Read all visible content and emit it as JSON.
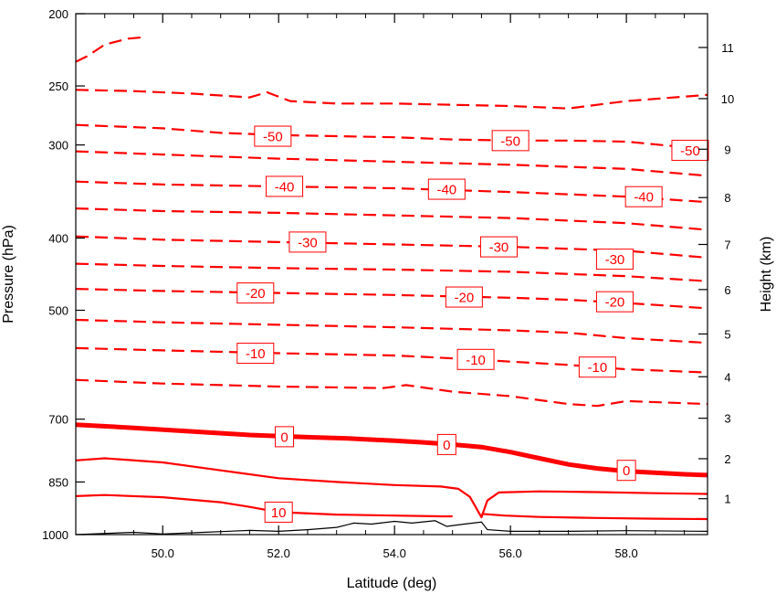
{
  "chart_data": {
    "type": "line",
    "title": "",
    "xlabel": "Latitude (deg)",
    "ylabel": "Pressure (hPa)",
    "ylabel_right": "Height (km)",
    "xlim": [
      48.5,
      59.4
    ],
    "ylim": [
      1000,
      200
    ],
    "y_scale": "log",
    "x_ticks": [
      50,
      52,
      54,
      56,
      58
    ],
    "x_tick_labels": [
      "50.0",
      "52.0",
      "54.0",
      "56.0",
      "58.0"
    ],
    "y_ticks": [
      200,
      250,
      300,
      400,
      500,
      700,
      850,
      1000
    ],
    "y_tick_labels": [
      "200",
      "250",
      "300",
      "400",
      "500",
      "700",
      "850",
      "1000"
    ],
    "y2_ticks": [
      1,
      2,
      3,
      4,
      5,
      6,
      7,
      8,
      9,
      10,
      11
    ],
    "y2_tick_labels": [
      "1",
      "2",
      "3",
      "4",
      "5",
      "6",
      "7",
      "8",
      "9",
      "10",
      "11"
    ],
    "y2_tick_pressure": [
      895,
      791,
      698,
      614,
      538,
      469,
      408,
      353,
      304,
      260,
      222
    ],
    "grid": false,
    "legend": "none",
    "line_color": "#ff0000",
    "terrain_color": "#000000",
    "series": [
      {
        "level": -60,
        "label": "",
        "style": "dashed",
        "x": [
          48.5,
          48.7,
          49.0,
          49.4,
          49.7
        ],
        "y": [
          232,
          228,
          220,
          216,
          215
        ]
      },
      {
        "level": -55,
        "label": "",
        "style": "dashed",
        "x": [
          48.5,
          49.5,
          50.5,
          51.5,
          51.8,
          52.2,
          53.0,
          54.0,
          55.0,
          56.0,
          57.0,
          58.0,
          59.4
        ],
        "y": [
          253,
          254,
          256,
          259,
          255,
          262,
          264,
          264,
          265,
          266,
          268,
          262,
          257
        ]
      },
      {
        "level": -50,
        "label": "-50",
        "style": "dashed",
        "x": [
          48.5,
          50.0,
          51.0,
          52.0,
          53.0,
          54.0,
          55.0,
          56.0,
          57.0,
          58.0,
          58.8,
          59.4
        ],
        "y": [
          282,
          285,
          289,
          291,
          292,
          293,
          295,
          296,
          296,
          297,
          301,
          305
        ]
      },
      {
        "level": -45,
        "label": "",
        "style": "dashed",
        "x": [
          48.5,
          50.0,
          52.0,
          54.0,
          56.0,
          58.0,
          59.4
        ],
        "y": [
          306,
          309,
          313,
          316,
          319,
          323,
          330
        ]
      },
      {
        "level": -40,
        "label": "-40",
        "style": "dashed",
        "x": [
          48.5,
          50.0,
          52.0,
          54.0,
          56.0,
          58.0,
          59.4
        ],
        "y": [
          336,
          339,
          341,
          343,
          347,
          352,
          358
        ]
      },
      {
        "level": -35,
        "label": "",
        "style": "dashed",
        "x": [
          48.5,
          50.0,
          52.0,
          54.0,
          56.0,
          58.0,
          59.4
        ],
        "y": [
          365,
          368,
          370,
          373,
          376,
          382,
          390
        ]
      },
      {
        "level": -30,
        "label": "-30",
        "style": "dashed",
        "x": [
          48.5,
          50.0,
          52.0,
          54.0,
          56.0,
          58.0,
          59.4
        ],
        "y": [
          398,
          402,
          405,
          408,
          411,
          416,
          425
        ]
      },
      {
        "level": -25,
        "label": "",
        "style": "dashed",
        "x": [
          48.5,
          50.0,
          52.0,
          54.0,
          56.0,
          58.0,
          59.4
        ],
        "y": [
          433,
          436,
          439,
          441,
          444,
          450,
          457
        ]
      },
      {
        "level": -20,
        "label": "-20",
        "style": "dashed",
        "x": [
          48.5,
          50.0,
          52.0,
          54.0,
          56.0,
          57.0,
          58.0,
          59.4
        ],
        "y": [
          468,
          471,
          474,
          477,
          481,
          484,
          489,
          497
        ]
      },
      {
        "level": -15,
        "label": "",
        "style": "dashed",
        "x": [
          48.5,
          50.0,
          52.0,
          54.0,
          56.0,
          57.0,
          58.0,
          59.4
        ],
        "y": [
          515,
          519,
          523,
          527,
          532,
          536,
          545,
          553
        ]
      },
      {
        "level": -10,
        "label": "-10",
        "style": "dashed",
        "x": [
          48.5,
          50.0,
          52.0,
          54.0,
          55.0,
          56.0,
          57.0,
          58.0,
          59.4
        ],
        "y": [
          562,
          566,
          571,
          575,
          580,
          586,
          592,
          600,
          606
        ]
      },
      {
        "level": -5,
        "label": "",
        "style": "dashed",
        "x": [
          48.5,
          50.0,
          52.0,
          53.8,
          54.2,
          55.0,
          56.0,
          57.0,
          57.5,
          58.0,
          59.4
        ],
        "y": [
          620,
          627,
          633,
          636,
          630,
          643,
          652,
          668,
          672,
          662,
          668
        ]
      },
      {
        "level": 0,
        "label": "0",
        "style": "bold",
        "x": [
          48.5,
          49.5,
          50.5,
          51.5,
          52.5,
          53.2,
          53.5,
          54.0,
          54.5,
          55.0,
          55.5,
          56.0,
          56.5,
          57.0,
          57.5,
          58.0,
          59.0,
          59.4
        ],
        "y": [
          712,
          719,
          727,
          735,
          740,
          743,
          745,
          748,
          752,
          757,
          763,
          775,
          790,
          805,
          815,
          822,
          830,
          832
        ]
      },
      {
        "level": 5,
        "label": "",
        "style": "solid",
        "x": [
          48.5,
          49.0,
          50.0,
          51.0,
          52.0,
          53.0,
          54.0,
          54.8,
          55.1,
          55.3,
          55.5,
          55.6,
          55.8,
          56.5,
          57.5,
          58.5,
          59.4
        ],
        "y": [
          795,
          790,
          800,
          820,
          840,
          850,
          858,
          862,
          868,
          890,
          948,
          900,
          878,
          875,
          877,
          880,
          882
        ]
      },
      {
        "level": 10,
        "label": "10",
        "style": "solid",
        "x": [
          48.5,
          49.0,
          50.0,
          51.0,
          51.5,
          52.0,
          53.0,
          54.0,
          54.8,
          55.0
        ],
        "y": [
          888,
          885,
          891,
          905,
          918,
          933,
          940,
          943,
          945,
          945
        ]
      },
      {
        "level": 10,
        "label": "",
        "style": "solid",
        "x": [
          55.5,
          55.9,
          56.5,
          57.5,
          58.5,
          59.4
        ],
        "y": [
          938,
          943,
          947,
          950,
          952,
          953
        ]
      }
    ],
    "terrain": {
      "x": [
        48.5,
        49.5,
        50.0,
        50.7,
        51.5,
        52.0,
        52.5,
        53.0,
        53.3,
        53.6,
        54.0,
        54.3,
        54.7,
        54.9,
        55.2,
        55.5,
        55.6,
        56.0,
        57.0,
        58.0,
        59.4
      ],
      "y": [
        1000,
        993,
        998,
        993,
        987,
        990,
        985,
        978,
        965,
        968,
        960,
        965,
        958,
        975,
        968,
        962,
        985,
        990,
        990,
        988,
        990
      ]
    },
    "contour_labels": [
      {
        "text": "-50",
        "x": 51.9,
        "y": 292
      },
      {
        "text": "-50",
        "x": 56.0,
        "y": 296
      },
      {
        "text": "-50",
        "x": 59.1,
        "y": 305
      },
      {
        "text": "-40",
        "x": 52.1,
        "y": 341
      },
      {
        "text": "-40",
        "x": 54.9,
        "y": 344
      },
      {
        "text": "-40",
        "x": 58.3,
        "y": 352
      },
      {
        "text": "-30",
        "x": 52.5,
        "y": 405
      },
      {
        "text": "-30",
        "x": 55.8,
        "y": 411
      },
      {
        "text": "-30",
        "x": 57.8,
        "y": 427
      },
      {
        "text": "-20",
        "x": 51.6,
        "y": 474
      },
      {
        "text": "-20",
        "x": 55.2,
        "y": 480
      },
      {
        "text": "-20",
        "x": 57.8,
        "y": 487
      },
      {
        "text": "-10",
        "x": 51.6,
        "y": 571
      },
      {
        "text": "-10",
        "x": 55.4,
        "y": 582
      },
      {
        "text": "-10",
        "x": 57.5,
        "y": 596
      },
      {
        "text": "0",
        "x": 52.1,
        "y": 739
      },
      {
        "text": "0",
        "x": 54.9,
        "y": 757
      },
      {
        "text": "0",
        "x": 58.0,
        "y": 820
      },
      {
        "text": "10",
        "x": 52.0,
        "y": 933
      }
    ]
  }
}
